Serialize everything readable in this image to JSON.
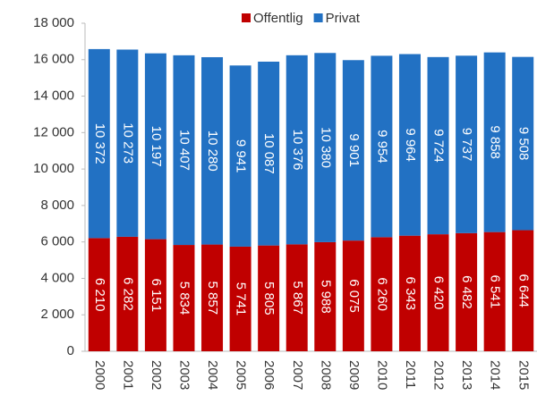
{
  "chart_data": {
    "type": "stacked_bar",
    "categories": [
      "2000",
      "2001",
      "2002",
      "2003",
      "2004",
      "2005",
      "2006",
      "2007",
      "2008",
      "2009",
      "2010",
      "2011",
      "2012",
      "2013",
      "2014",
      "2015"
    ],
    "series": [
      {
        "name": "Offentlig",
        "color": "#c00000",
        "values": [
          6210,
          6282,
          6151,
          5834,
          5857,
          5741,
          5805,
          5867,
          5988,
          6075,
          6260,
          6343,
          6420,
          6482,
          6541,
          6644
        ],
        "value_labels": [
          "6 210",
          "6 282",
          "6 151",
          "5 834",
          "5 857",
          "5 741",
          "5 805",
          "5 867",
          "5 988",
          "6 075",
          "6 260",
          "6 343",
          "6 420",
          "6 482",
          "6 541",
          "6 644"
        ]
      },
      {
        "name": "Privat",
        "color": "#2271c3",
        "values": [
          10372,
          10273,
          10197,
          10407,
          10280,
          9941,
          10087,
          10376,
          10380,
          9901,
          9954,
          9964,
          9724,
          9737,
          9858,
          9508
        ],
        "value_labels": [
          "10 372",
          "10 273",
          "10 197",
          "10 407",
          "10 280",
          "9 941",
          "10 087",
          "10 376",
          "10 380",
          "9 901",
          "9 954",
          "9 964",
          "9 724",
          "9 737",
          "9 858",
          "9 508"
        ]
      }
    ],
    "ylim": [
      0,
      18000
    ],
    "yticks": [
      0,
      {
        "value": 2000,
        "label": "2 000"
      },
      {
        "value": 4000,
        "label": "4 000"
      },
      {
        "value": 6000,
        "label": "6 000"
      },
      {
        "value": 8000,
        "label": "8 000"
      },
      {
        "value": 10000,
        "label": "10 000"
      },
      {
        "value": 12000,
        "label": "12 000"
      },
      {
        "value": 14000,
        "label": "14 000"
      },
      {
        "value": 16000,
        "label": "16 000"
      },
      {
        "value": 18000,
        "label": "18 000"
      }
    ],
    "legend": "top"
  }
}
